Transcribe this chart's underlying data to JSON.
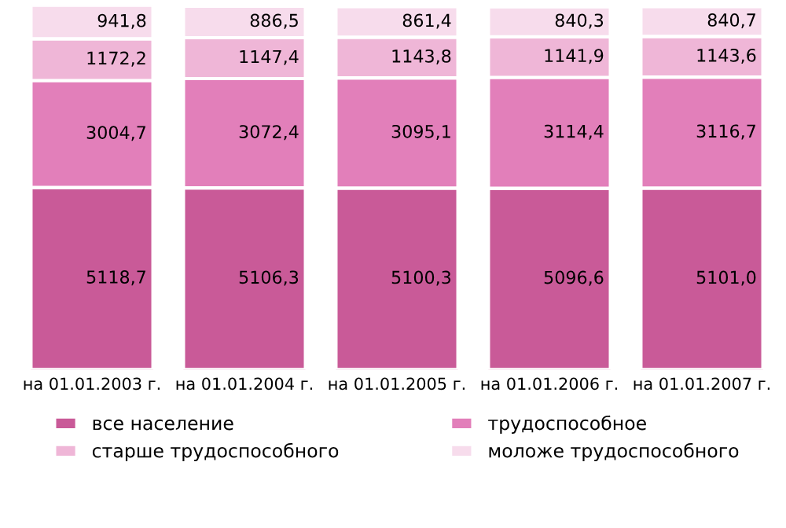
{
  "chart_data": {
    "type": "bar",
    "stacked": true,
    "legend": "bottom",
    "categories": [
      "на 01.01.2003 г.",
      "на 01.01.2004 г.",
      "на 01.01.2005 г.",
      "на 01.01.2006 г.",
      "на 01.01.2007 г."
    ],
    "series": [
      {
        "name": "все население",
        "color": "#c95a98",
        "values": [
          5118.7,
          5106.3,
          5100.3,
          5096.6,
          5101.0
        ],
        "value_labels": [
          "5118,7",
          "5106,3",
          "5100,3",
          "5096,6",
          "5101,0"
        ]
      },
      {
        "name": "трудоспособное",
        "color": "#e27fba",
        "values": [
          3004.7,
          3072.4,
          3095.1,
          3114.4,
          3116.7
        ],
        "value_labels": [
          "3004,7",
          "3072,4",
          "3095,1",
          "3114,4",
          "3116,7"
        ]
      },
      {
        "name": "старше трудоспособного",
        "color": "#efb6d7",
        "values": [
          1172.2,
          1147.4,
          1143.8,
          1141.9,
          1143.6
        ],
        "value_labels": [
          "1172,2",
          "1147,4",
          "1143,8",
          "1141,9",
          "1143,6"
        ]
      },
      {
        "name": "моложе трудоспособного",
        "color": "#f7dcec",
        "values": [
          941.8,
          886.5,
          861.4,
          840.3,
          840.7
        ],
        "value_labels": [
          "941,8",
          "886,5",
          "861,4",
          "840,3",
          "840,7"
        ]
      }
    ]
  }
}
